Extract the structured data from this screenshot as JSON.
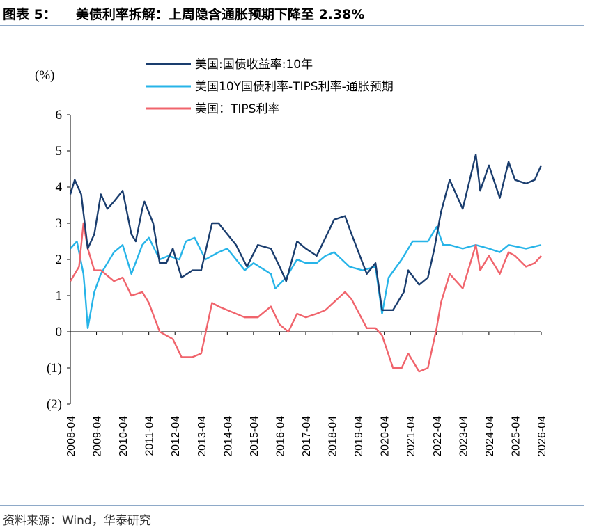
{
  "title": {
    "number": "图表 5：",
    "text": "美债利率拆解：上周隐含通胀预期下降至 2.38%"
  },
  "source": "资料来源：Wind，华泰研究",
  "colors": {
    "nominal": "#1a3d6e",
    "breakeven": "#27b4e8",
    "tips": "#f0646c"
  },
  "chart_data": {
    "type": "line",
    "y_unit": "(%)",
    "ylim": [
      -2,
      6
    ],
    "y_ticks": [
      "6",
      "5",
      "4",
      "3",
      "2",
      "1",
      "0",
      "(1)",
      "(2)"
    ],
    "x_ticks": [
      "2008-04",
      "2009-04",
      "2010-04",
      "2011-04",
      "2012-04",
      "2013-04",
      "2014-04",
      "2015-04",
      "2016-04",
      "2017-04",
      "2018-04",
      "2019-04",
      "2020-04",
      "2021-04",
      "2022-04",
      "2023-04",
      "2024-04",
      "2025-04",
      "2026-04"
    ],
    "xlim": [
      "2008-04",
      "2026-04"
    ],
    "legend_position": "top",
    "series": [
      {
        "name": "美国:国债收益率:10年",
        "color": "#1a3d6e",
        "points": [
          [
            "2008-04",
            3.8
          ],
          [
            "2008-06",
            4.2
          ],
          [
            "2008-09",
            3.8
          ],
          [
            "2008-12",
            2.3
          ],
          [
            "2009-03",
            2.7
          ],
          [
            "2009-06",
            3.8
          ],
          [
            "2009-09",
            3.4
          ],
          [
            "2009-12",
            3.6
          ],
          [
            "2010-04",
            3.9
          ],
          [
            "2010-08",
            2.7
          ],
          [
            "2010-10",
            2.5
          ],
          [
            "2011-01",
            3.4
          ],
          [
            "2011-02",
            3.6
          ],
          [
            "2011-06",
            3.0
          ],
          [
            "2011-09",
            1.9
          ],
          [
            "2011-12",
            1.9
          ],
          [
            "2012-03",
            2.3
          ],
          [
            "2012-07",
            1.5
          ],
          [
            "2012-12",
            1.7
          ],
          [
            "2013-04",
            1.7
          ],
          [
            "2013-09",
            3.0
          ],
          [
            "2013-12",
            3.0
          ],
          [
            "2014-04",
            2.7
          ],
          [
            "2014-08",
            2.4
          ],
          [
            "2015-01",
            1.8
          ],
          [
            "2015-06",
            2.4
          ],
          [
            "2015-12",
            2.3
          ],
          [
            "2016-04",
            1.8
          ],
          [
            "2016-07",
            1.4
          ],
          [
            "2016-12",
            2.5
          ],
          [
            "2017-04",
            2.3
          ],
          [
            "2017-09",
            2.1
          ],
          [
            "2018-01",
            2.6
          ],
          [
            "2018-05",
            3.1
          ],
          [
            "2018-10",
            3.2
          ],
          [
            "2019-01",
            2.7
          ],
          [
            "2019-08",
            1.6
          ],
          [
            "2019-12",
            1.9
          ],
          [
            "2020-03",
            0.6
          ],
          [
            "2020-08",
            0.6
          ],
          [
            "2021-01",
            1.1
          ],
          [
            "2021-03",
            1.7
          ],
          [
            "2021-08",
            1.3
          ],
          [
            "2021-12",
            1.5
          ],
          [
            "2022-03",
            2.3
          ],
          [
            "2022-06",
            3.3
          ],
          [
            "2022-10",
            4.2
          ],
          [
            "2023-04",
            3.4
          ],
          [
            "2023-10",
            4.9
          ],
          [
            "2023-12",
            3.9
          ],
          [
            "2024-04",
            4.6
          ],
          [
            "2024-09",
            3.7
          ],
          [
            "2025-01",
            4.7
          ],
          [
            "2025-04",
            4.2
          ],
          [
            "2025-09",
            4.1
          ],
          [
            "2026-01",
            4.2
          ],
          [
            "2026-04",
            4.6
          ]
        ]
      },
      {
        "name": "美国10Y国债利率-TIPS利率-通胀预期",
        "color": "#27b4e8",
        "points": [
          [
            "2008-04",
            2.3
          ],
          [
            "2008-07",
            2.5
          ],
          [
            "2008-10",
            1.6
          ],
          [
            "2008-11",
            0.9
          ],
          [
            "2008-12",
            0.1
          ],
          [
            "2009-03",
            1.1
          ],
          [
            "2009-06",
            1.6
          ],
          [
            "2009-12",
            2.2
          ],
          [
            "2010-04",
            2.4
          ],
          [
            "2010-08",
            1.6
          ],
          [
            "2011-01",
            2.4
          ],
          [
            "2011-04",
            2.6
          ],
          [
            "2011-09",
            2.0
          ],
          [
            "2012-01",
            2.1
          ],
          [
            "2012-06",
            2.0
          ],
          [
            "2012-09",
            2.5
          ],
          [
            "2013-01",
            2.6
          ],
          [
            "2013-06",
            2.0
          ],
          [
            "2013-12",
            2.2
          ],
          [
            "2014-04",
            2.3
          ],
          [
            "2014-12",
            1.7
          ],
          [
            "2015-04",
            1.9
          ],
          [
            "2015-12",
            1.6
          ],
          [
            "2016-02",
            1.2
          ],
          [
            "2016-07",
            1.5
          ],
          [
            "2016-12",
            2.0
          ],
          [
            "2017-04",
            1.9
          ],
          [
            "2017-09",
            1.9
          ],
          [
            "2018-01",
            2.1
          ],
          [
            "2018-05",
            2.2
          ],
          [
            "2018-12",
            1.8
          ],
          [
            "2019-06",
            1.7
          ],
          [
            "2019-12",
            1.8
          ],
          [
            "2020-03",
            0.5
          ],
          [
            "2020-06",
            1.5
          ],
          [
            "2020-12",
            2.0
          ],
          [
            "2021-05",
            2.5
          ],
          [
            "2021-12",
            2.5
          ],
          [
            "2022-04",
            2.9
          ],
          [
            "2022-07",
            2.4
          ],
          [
            "2022-10",
            2.4
          ],
          [
            "2023-04",
            2.3
          ],
          [
            "2023-10",
            2.4
          ],
          [
            "2024-04",
            2.3
          ],
          [
            "2024-09",
            2.2
          ],
          [
            "2025-01",
            2.4
          ],
          [
            "2025-09",
            2.3
          ],
          [
            "2026-04",
            2.4
          ]
        ]
      },
      {
        "name": "美国：TIPS利率",
        "color": "#f0646c",
        "points": [
          [
            "2008-04",
            1.4
          ],
          [
            "2008-08",
            1.8
          ],
          [
            "2008-10",
            3.0
          ],
          [
            "2008-12",
            2.3
          ],
          [
            "2009-03",
            1.7
          ],
          [
            "2009-06",
            1.7
          ],
          [
            "2009-12",
            1.4
          ],
          [
            "2010-04",
            1.5
          ],
          [
            "2010-08",
            1.0
          ],
          [
            "2011-01",
            1.1
          ],
          [
            "2011-04",
            0.8
          ],
          [
            "2011-09",
            0.0
          ],
          [
            "2011-12",
            -0.1
          ],
          [
            "2012-03",
            -0.2
          ],
          [
            "2012-07",
            -0.7
          ],
          [
            "2012-12",
            -0.7
          ],
          [
            "2013-04",
            -0.6
          ],
          [
            "2013-09",
            0.8
          ],
          [
            "2013-12",
            0.7
          ],
          [
            "2014-04",
            0.6
          ],
          [
            "2014-12",
            0.4
          ],
          [
            "2015-06",
            0.4
          ],
          [
            "2015-12",
            0.7
          ],
          [
            "2016-04",
            0.2
          ],
          [
            "2016-08",
            0.0
          ],
          [
            "2016-12",
            0.5
          ],
          [
            "2017-04",
            0.4
          ],
          [
            "2017-09",
            0.5
          ],
          [
            "2018-01",
            0.6
          ],
          [
            "2018-10",
            1.1
          ],
          [
            "2019-01",
            0.9
          ],
          [
            "2019-08",
            0.1
          ],
          [
            "2019-12",
            0.1
          ],
          [
            "2020-03",
            -0.1
          ],
          [
            "2020-08",
            -1.0
          ],
          [
            "2020-12",
            -1.0
          ],
          [
            "2021-03",
            -0.6
          ],
          [
            "2021-08",
            -1.1
          ],
          [
            "2021-12",
            -1.0
          ],
          [
            "2022-04",
            0.1
          ],
          [
            "2022-06",
            0.8
          ],
          [
            "2022-10",
            1.6
          ],
          [
            "2023-04",
            1.2
          ],
          [
            "2023-10",
            2.4
          ],
          [
            "2023-12",
            1.7
          ],
          [
            "2024-04",
            2.1
          ],
          [
            "2024-09",
            1.6
          ],
          [
            "2025-01",
            2.2
          ],
          [
            "2025-04",
            2.1
          ],
          [
            "2025-09",
            1.8
          ],
          [
            "2026-01",
            1.9
          ],
          [
            "2026-04",
            2.1
          ]
        ]
      }
    ]
  }
}
